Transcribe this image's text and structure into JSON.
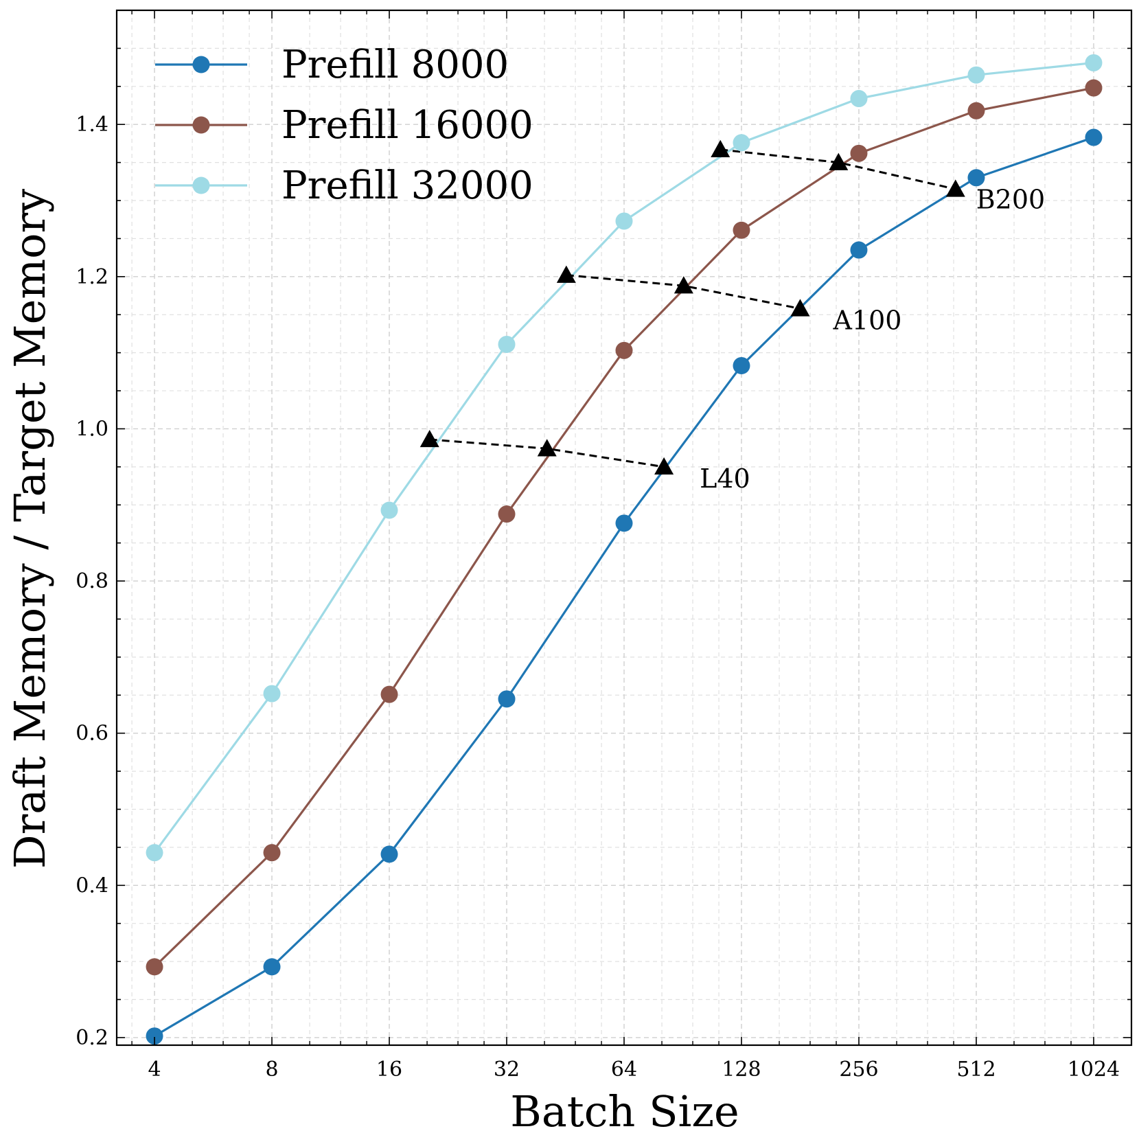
{
  "chart_data": {
    "type": "line",
    "xscale": "log2",
    "xlabel": "Batch Size",
    "ylabel": "Draft Memory / Target Memory",
    "xlim": [
      3.2,
      1280
    ],
    "ylim": [
      0.19,
      1.55
    ],
    "x_ticks": [
      4,
      8,
      16,
      32,
      64,
      128,
      256,
      512,
      1024
    ],
    "x_tick_labels": [
      "4",
      "8",
      "16",
      "32",
      "64",
      "128",
      "256",
      "512",
      "1024"
    ],
    "y_ticks": [
      0.2,
      0.4,
      0.6,
      0.8,
      1.0,
      1.2,
      1.4
    ],
    "y_tick_labels": [
      "0.2",
      "0.4",
      "0.6",
      "0.8",
      "1.0",
      "1.2",
      "1.4"
    ],
    "grid": true,
    "legend_position": "top-left",
    "series": [
      {
        "name": "Prefill 8000",
        "color": "#1f77b4",
        "x": [
          4,
          8,
          16,
          32,
          64,
          128,
          256,
          512,
          1024
        ],
        "values": [
          0.202,
          0.293,
          0.441,
          0.645,
          0.876,
          1.083,
          1.235,
          1.33,
          1.383
        ]
      },
      {
        "name": "Prefill 16000",
        "color": "#8c564b",
        "x": [
          4,
          8,
          16,
          32,
          64,
          128,
          256,
          512,
          1024
        ],
        "values": [
          0.293,
          0.443,
          0.651,
          0.888,
          1.103,
          1.261,
          1.362,
          1.418,
          1.448
        ]
      },
      {
        "name": "Prefill 32000",
        "color": "#9edae5",
        "x": [
          4,
          8,
          16,
          32,
          64,
          128,
          256,
          512,
          1024
        ],
        "values": [
          0.443,
          0.652,
          0.893,
          1.111,
          1.273,
          1.376,
          1.434,
          1.465,
          1.481
        ]
      }
    ],
    "gpu_lines": [
      {
        "label": "L40",
        "x": [
          20.3,
          40.6,
          81
        ],
        "values": [
          0.986,
          0.974,
          0.95
        ]
      },
      {
        "label": "A100",
        "x": [
          45.5,
          91,
          181
        ],
        "values": [
          1.202,
          1.188,
          1.158
        ]
      },
      {
        "label": "B200",
        "x": [
          113,
          227,
          453
        ],
        "values": [
          1.367,
          1.35,
          1.315
        ]
      }
    ]
  }
}
